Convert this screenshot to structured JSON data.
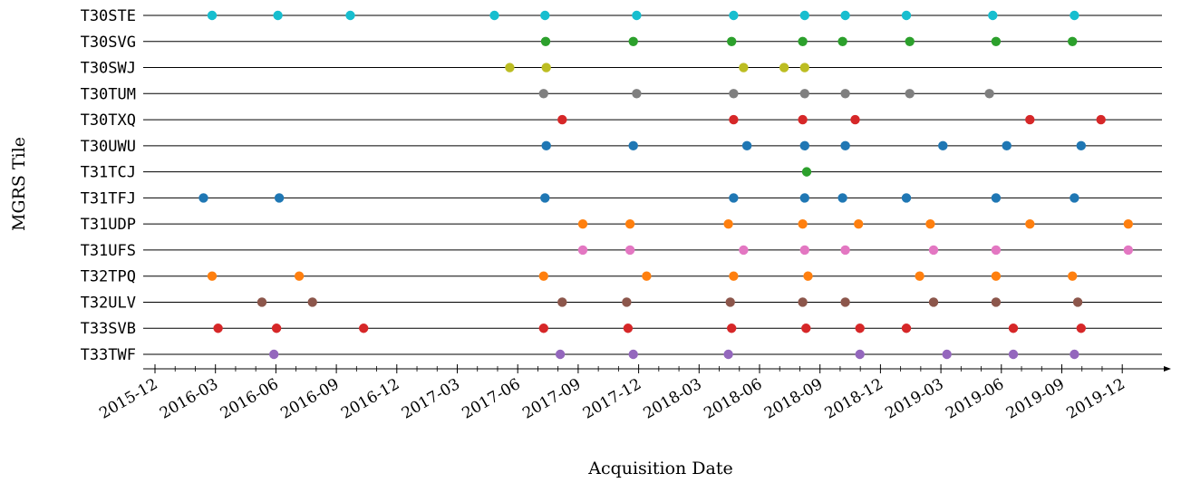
{
  "chart_data": {
    "type": "scatter",
    "xlabel": "Acquisition Date",
    "ylabel": "MGRS Tile",
    "x_tick_labels": [
      "2015-12",
      "2016-03",
      "2016-06",
      "2016-09",
      "2016-12",
      "2017-03",
      "2017-06",
      "2017-09",
      "2017-12",
      "2018-03",
      "2018-06",
      "2018-09",
      "2018-12",
      "2019-03",
      "2019-06",
      "2019-09",
      "2019-12"
    ],
    "xlim": [
      "2015-12-01",
      "2020-03-20"
    ],
    "grid": "horizontal lines per tile",
    "legend": "none",
    "series": [
      {
        "tile": "T30STE",
        "color": "#17becf",
        "dates": [
          "2016-02-25",
          "2016-06-03",
          "2016-09-20",
          "2017-04-25",
          "2017-07-10",
          "2017-11-25",
          "2018-04-20",
          "2018-08-05",
          "2018-10-05",
          "2019-01-05",
          "2019-05-15",
          "2019-09-15"
        ]
      },
      {
        "tile": "T30SVG",
        "color": "#2ca02c",
        "dates": [
          "2017-07-11",
          "2017-11-20",
          "2018-04-17",
          "2018-08-02",
          "2018-10-01",
          "2019-01-10",
          "2019-05-20",
          "2019-09-12"
        ]
      },
      {
        "tile": "T30SWJ",
        "color": "#bcbd22",
        "dates": [
          "2017-05-18",
          "2017-07-12",
          "2018-05-05",
          "2018-07-05",
          "2018-08-05"
        ]
      },
      {
        "tile": "T30TUM",
        "color": "#7f7f7f",
        "dates": [
          "2017-07-08",
          "2017-11-25",
          "2018-04-20",
          "2018-08-05",
          "2018-10-05",
          "2019-01-10",
          "2019-05-10"
        ]
      },
      {
        "tile": "T30TXQ",
        "color": "#d62728",
        "dates": [
          "2017-08-05",
          "2018-04-20",
          "2018-08-02",
          "2018-10-20",
          "2019-07-10",
          "2019-10-25"
        ]
      },
      {
        "tile": "T30UWU",
        "color": "#1f77b4",
        "dates": [
          "2017-07-12",
          "2017-11-20",
          "2018-05-10",
          "2018-08-05",
          "2018-10-05",
          "2019-03-01",
          "2019-06-05",
          "2019-09-25"
        ]
      },
      {
        "tile": "T31TCJ",
        "color": "#2ca02c",
        "dates": [
          "2018-08-08"
        ]
      },
      {
        "tile": "T31TFJ",
        "color": "#1f77b4",
        "dates": [
          "2016-02-12",
          "2016-06-05",
          "2017-07-10",
          "2018-04-20",
          "2018-08-05",
          "2018-10-01",
          "2019-01-05",
          "2019-05-20",
          "2019-09-15"
        ]
      },
      {
        "tile": "T31UDP",
        "color": "#ff7f0e",
        "dates": [
          "2017-09-05",
          "2017-11-15",
          "2018-04-12",
          "2018-08-02",
          "2018-10-25",
          "2019-02-10",
          "2019-07-10",
          "2019-12-05"
        ]
      },
      {
        "tile": "T31UFS",
        "color": "#e377c2",
        "dates": [
          "2017-09-05",
          "2017-11-15",
          "2018-05-05",
          "2018-08-05",
          "2018-10-05",
          "2019-02-15",
          "2019-05-20",
          "2019-12-05"
        ]
      },
      {
        "tile": "T32TPQ",
        "color": "#ff7f0e",
        "dates": [
          "2016-02-25",
          "2016-07-05",
          "2017-07-08",
          "2017-12-10",
          "2018-04-20",
          "2018-08-10",
          "2019-01-25",
          "2019-05-20",
          "2019-09-12"
        ]
      },
      {
        "tile": "T32ULV",
        "color": "#8c564b",
        "dates": [
          "2016-05-10",
          "2016-07-25",
          "2017-08-05",
          "2017-11-10",
          "2018-04-15",
          "2018-08-02",
          "2018-10-05",
          "2019-02-15",
          "2019-05-20",
          "2019-09-20"
        ]
      },
      {
        "tile": "T33SVB",
        "color": "#d62728",
        "dates": [
          "2016-03-05",
          "2016-06-01",
          "2016-10-10",
          "2017-07-08",
          "2017-11-12",
          "2018-04-17",
          "2018-08-07",
          "2018-10-27",
          "2019-01-05",
          "2019-06-15",
          "2019-09-25"
        ]
      },
      {
        "tile": "T33TWF",
        "color": "#9467bd",
        "dates": [
          "2016-05-28",
          "2017-08-02",
          "2017-11-20",
          "2018-04-12",
          "2018-10-27",
          "2019-03-07",
          "2019-06-15",
          "2019-09-15"
        ]
      }
    ]
  }
}
